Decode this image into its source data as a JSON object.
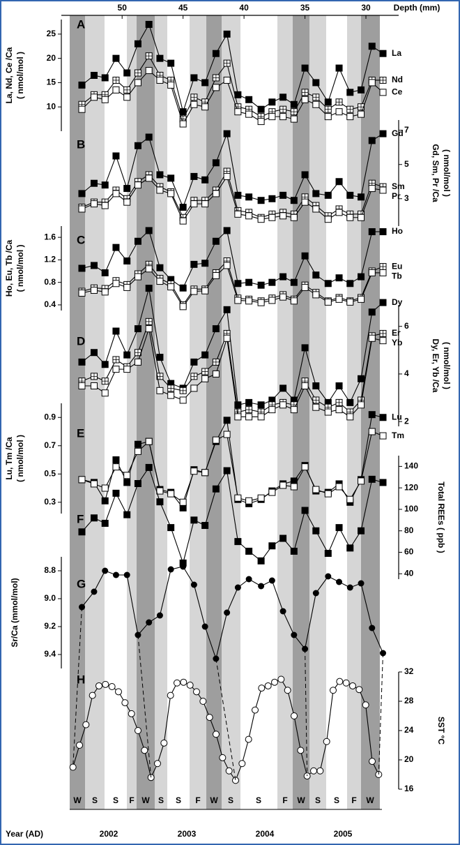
{
  "chart_data": {
    "type": "multi-panel",
    "xlabel": "Depth (mm)",
    "xlim": [
      54.3,
      28.0
    ],
    "xticks": [
      50,
      45,
      40,
      35,
      30
    ],
    "x": [
      53.3,
      52.3,
      51.4,
      50.5,
      49.6,
      48.7,
      47.8,
      46.9,
      46.0,
      45.0,
      44.1,
      43.2,
      42.3,
      41.4,
      40.5,
      39.6,
      38.6,
      37.7,
      36.8,
      35.9,
      35.0,
      34.1,
      33.1,
      32.2,
      31.3,
      30.4,
      29.5,
      28.6
    ],
    "panels": [
      {
        "label": "A",
        "type": "line",
        "ylabel": "La, Nd, Ce /Ca",
        "yunit": "( nmol/mol )",
        "axis_side": "left",
        "ylim": [
          5,
          28
        ],
        "yticks": [
          10,
          15,
          20,
          25
        ],
        "series": [
          {
            "name": "La",
            "marker": "filled-square",
            "color": "#000000",
            "values": [
              14.5,
              16.5,
              16,
              20,
              17,
              23,
              27,
              20,
              19,
              9,
              16,
              15,
              21,
              25,
              12.5,
              11.5,
              9.5,
              11,
              12,
              10.5,
              18,
              15,
              11,
              18,
              13,
              13.5,
              22.5,
              21
            ]
          },
          {
            "name": "Nd",
            "marker": "crossed-square",
            "color": "#000000",
            "values": [
              10.5,
              12.5,
              12.5,
              15.5,
              13.5,
              17,
              20.5,
              16.5,
              15.5,
              7.5,
              12,
              11,
              16,
              19,
              10,
              9.5,
              8,
              9,
              9.5,
              9,
              13,
              12,
              9.5,
              11,
              9.5,
              10,
              15.5,
              15.5
            ]
          },
          {
            "name": "Ce",
            "marker": "open-square",
            "color": "#000000",
            "values": [
              9.5,
              12,
              11.5,
              13.5,
              12,
              15,
              17.5,
              15.5,
              14.5,
              6.5,
              10.5,
              10,
              14,
              15.5,
              9,
              8.5,
              7,
              8,
              8,
              7.5,
              11.5,
              10.5,
              8,
              9,
              8,
              8.5,
              15,
              13
            ]
          }
        ]
      },
      {
        "label": "B",
        "type": "line",
        "ylabel": "Gd, Sm, Pr /Ca",
        "yunit": "( nmol/mol )",
        "axis_side": "right",
        "ylim": [
          1.4,
          7.6
        ],
        "yticks": [
          3,
          5,
          7
        ],
        "series": [
          {
            "name": "Gd",
            "marker": "filled-square",
            "color": "#000000",
            "values": [
              3.3,
              3.9,
              3.8,
              5.5,
              3.6,
              6.1,
              6.6,
              4.4,
              4.2,
              2.5,
              4.3,
              4.1,
              5.1,
              6.8,
              3.2,
              3.1,
              2.9,
              3.0,
              3.2,
              2.9,
              4.4,
              3.3,
              3.2,
              4.0,
              3.2,
              3.1,
              6.4,
              6.8
            ]
          },
          {
            "name": "Sm",
            "marker": "crossed-square",
            "color": "#000000",
            "values": [
              2.5,
              2.8,
              2.8,
              3.5,
              3.0,
              4.0,
              4.4,
              3.7,
              3.4,
              1.9,
              2.9,
              2.9,
              3.5,
              4.6,
              2.3,
              2.2,
              1.9,
              2.1,
              2.2,
              2.1,
              3.1,
              2.6,
              2.0,
              2.4,
              2.1,
              2.1,
              3.9,
              3.7
            ]
          },
          {
            "name": "Pr",
            "marker": "open-square",
            "color": "#000000",
            "values": [
              2.4,
              2.7,
              2.6,
              3.3,
              2.8,
              3.8,
              4.2,
              3.5,
              3.3,
              1.7,
              2.7,
              2.7,
              3.3,
              4.3,
              2.1,
              2.0,
              1.8,
              1.9,
              2.0,
              1.9,
              2.8,
              2.4,
              1.8,
              2.2,
              1.9,
              1.9,
              3.6,
              3.5
            ]
          }
        ]
      },
      {
        "label": "C",
        "type": "line",
        "ylabel": "Ho, Eu, Tb /Ca",
        "yunit": "( nmol/mol )",
        "axis_side": "left",
        "ylim": [
          0.3,
          1.8
        ],
        "yticks": [
          0.4,
          0.8,
          1.2,
          1.6
        ],
        "series": [
          {
            "name": "Ho",
            "marker": "filled-square",
            "color": "#000000",
            "values": [
              1.05,
              1.1,
              0.97,
              1.42,
              1.18,
              1.53,
              1.72,
              1.06,
              0.85,
              0.7,
              1.12,
              1.14,
              1.53,
              1.72,
              0.78,
              0.8,
              0.75,
              0.8,
              0.9,
              0.8,
              1.27,
              0.93,
              0.78,
              0.88,
              0.78,
              0.9,
              1.7,
              1.7
            ]
          },
          {
            "name": "Eu",
            "marker": "crossed-square",
            "color": "#000000",
            "values": [
              0.64,
              0.7,
              0.69,
              0.83,
              0.76,
              0.95,
              1.12,
              0.87,
              0.77,
              0.4,
              0.68,
              0.68,
              0.97,
              1.18,
              0.52,
              0.5,
              0.47,
              0.52,
              0.58,
              0.5,
              0.75,
              0.62,
              0.47,
              0.53,
              0.47,
              0.53,
              1.0,
              1.08
            ]
          },
          {
            "name": "Tb",
            "marker": "open-square",
            "color": "#000000",
            "values": [
              0.61,
              0.66,
              0.63,
              0.78,
              0.71,
              0.9,
              1.04,
              0.82,
              0.72,
              0.37,
              0.64,
              0.65,
              0.92,
              1.1,
              0.48,
              0.47,
              0.44,
              0.48,
              0.54,
              0.47,
              0.71,
              0.58,
              0.45,
              0.5,
              0.45,
              0.5,
              0.97,
              0.97
            ]
          }
        ]
      },
      {
        "label": "D",
        "type": "line",
        "ylabel": "Dy, Er, Yb /Ca",
        "yunit": "( nmol/mol )",
        "axis_side": "right",
        "ylim": [
          1.8,
          6.9
        ],
        "yticks": [
          2,
          4,
          6
        ],
        "series": [
          {
            "name": "Dy",
            "marker": "filled-square",
            "color": "#000000",
            "values": [
              4.5,
              4.9,
              4.4,
              5.8,
              4.8,
              5.9,
              7.6,
              4.7,
              3.6,
              3.4,
              4.5,
              4.8,
              5.9,
              6.7,
              2.7,
              2.8,
              2.7,
              2.9,
              3.4,
              2.9,
              5.1,
              3.5,
              2.8,
              3.5,
              2.8,
              3.8,
              6.6,
              7.0
            ]
          },
          {
            "name": "Er",
            "marker": "crossed-square",
            "color": "#000000",
            "values": [
              3.7,
              3.9,
              3.7,
              4.6,
              4.3,
              4.9,
              6.2,
              3.9,
              3.4,
              3.3,
              3.9,
              4.1,
              4.5,
              5.7,
              2.4,
              2.5,
              2.4,
              2.7,
              2.8,
              2.7,
              3.7,
              2.9,
              2.6,
              2.8,
              2.4,
              2.9,
              5.6,
              5.7
            ]
          },
          {
            "name": "Yb",
            "marker": "open-square",
            "color": "#000000",
            "values": [
              3.5,
              3.5,
              3.2,
              4.2,
              4.2,
              4.5,
              5.9,
              3.3,
              3.1,
              2.9,
              3.4,
              3.8,
              4.0,
              5.5,
              2.2,
              2.2,
              2.2,
              2.5,
              2.7,
              2.5,
              3.5,
              2.6,
              2.4,
              2.5,
              2.2,
              2.7,
              5.5,
              5.4
            ]
          }
        ]
      },
      {
        "label": "E",
        "type": "line",
        "ylabel": "Lu, Tm /Ca",
        "yunit": "( nmol/mol )",
        "axis_side": "left",
        "ylim": [
          0.22,
          1.0
        ],
        "yticks": [
          0.3,
          0.5,
          0.7,
          0.9
        ],
        "series": [
          {
            "name": "Lu",
            "marker": "filled-square",
            "color": "#000000",
            "values": [
              0.46,
              0.44,
              0.31,
              0.6,
              0.44,
              0.71,
              0.73,
              0.39,
              0.37,
              0.26,
              0.53,
              0.51,
              0.73,
              0.88,
              0.32,
              0.29,
              0.32,
              0.38,
              0.43,
              0.45,
              0.56,
              0.38,
              0.37,
              0.43,
              0.3,
              0.46,
              0.92,
              0.9
            ]
          },
          {
            "name": "Tm",
            "marker": "open-square",
            "color": "#000000",
            "values": [
              0.46,
              0.43,
              0.4,
              0.55,
              0.49,
              0.66,
              0.73,
              0.38,
              0.36,
              0.3,
              0.52,
              0.51,
              0.74,
              0.78,
              0.33,
              0.31,
              0.33,
              0.37,
              0.42,
              0.41,
              0.55,
              0.39,
              0.36,
              0.41,
              0.32,
              0.45,
              0.8,
              0.77
            ]
          }
        ]
      },
      {
        "label": "F",
        "type": "line",
        "ylabel": "Total REEs ( ppb )",
        "axis_side": "right",
        "ylim": [
          35,
          150
        ],
        "yticks": [
          40,
          60,
          80,
          100,
          120,
          140
        ],
        "series": [
          {
            "marker": "filled-square",
            "color": "#000000",
            "values": [
              79,
              92,
              87,
              115,
              95,
              124,
              139,
              107,
              83,
              50,
              90,
              85,
              119,
              136,
              70,
              61,
              52,
              66,
              73,
              61,
              99,
              80,
              59,
              83,
              64,
              80,
              128,
              125
            ]
          }
        ]
      },
      {
        "label": "G",
        "type": "line",
        "ylabel": "Sr/Ca (mmol/mol)",
        "axis_side": "left",
        "ylim": [
          9.5,
          8.7
        ],
        "yticks": [
          8.8,
          {
            "value": 9.0,
            "label": "9.0"
          },
          9.2,
          9.4
        ],
        "series": [
          {
            "marker": "filled-circle",
            "color": "#000000",
            "values": [
              9.06,
              8.95,
              8.8,
              8.83,
              8.83,
              9.26,
              9.17,
              9.12,
              8.79,
              8.77,
              8.9,
              9.2,
              9.43,
              9.1,
              8.92,
              8.86,
              8.91,
              8.87,
              9.09,
              9.26,
              9.36,
              8.96,
              8.84,
              8.88,
              8.92,
              8.89,
              9.21,
              9.39
            ]
          }
        ]
      },
      {
        "label": "H",
        "type": "monthly-line",
        "ylabel": "SST °C",
        "axis_side": "right",
        "ylim": [
          16,
          32
        ],
        "yticks": [
          16,
          20,
          24,
          28,
          32
        ],
        "xlabel": "Year (AD)",
        "categories": [
          "2002",
          "2003",
          "2004",
          "2005"
        ],
        "seasons": [
          "W",
          "S",
          "S",
          "F",
          "W",
          "S",
          "S",
          "F",
          "W",
          "S",
          "S",
          "F",
          "W",
          "S",
          "S",
          "F",
          "W"
        ],
        "series": [
          {
            "marker": "open-circle",
            "color": "#000000",
            "values": [
              19,
              22,
              24.8,
              28.8,
              30.1,
              30.3,
              30,
              29.3,
              27.8,
              26.3,
              24,
              21.3,
              17.6,
              19.5,
              22.3,
              28.8,
              30.5,
              30.6,
              30.2,
              29.3,
              28,
              25.8,
              23.5,
              20.3,
              18.5,
              17.2,
              19.5,
              22.8,
              26.8,
              29.8,
              30.1,
              30.6,
              31,
              29.5,
              26,
              21.3,
              17.8,
              18.5,
              18.5,
              22.5,
              29.5,
              30.7,
              30.5,
              30.1,
              29.6,
              27.5,
              19.8,
              18
            ]
          }
        ]
      }
    ]
  }
}
